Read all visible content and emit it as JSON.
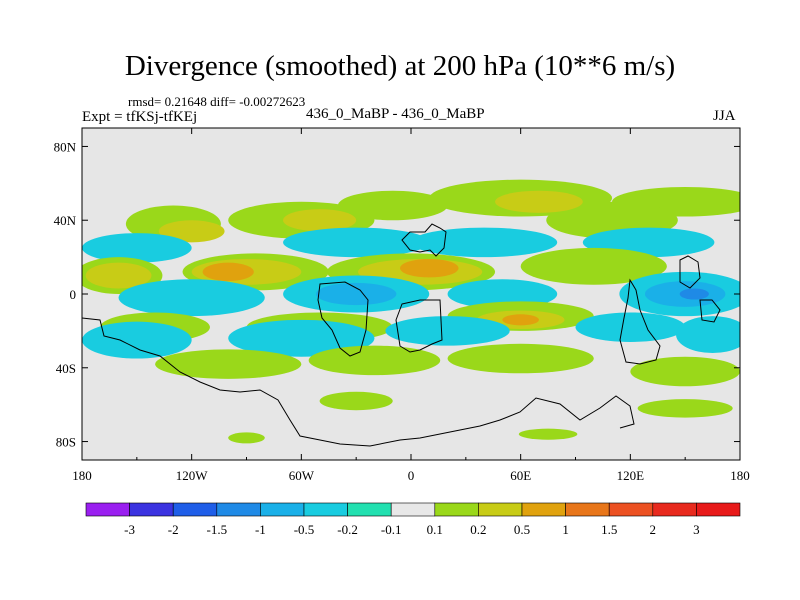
{
  "chart_data": {
    "type": "heatmap",
    "title": "Divergence (smoothed) at 200 hPa (10**6 m/s)",
    "stats_label": "rmsd= 0.21648 diff= -0.00272623",
    "expt_label": "Expt = tfKSj-tfKEj",
    "subtitle": "436_0_MaBP - 436_0_MaBP",
    "season": "JJA",
    "x_ticks": [
      "180",
      "120W",
      "60W",
      "0",
      "60E",
      "120E",
      "180"
    ],
    "x_tick_values": [
      -180,
      -120,
      -60,
      0,
      60,
      120,
      180
    ],
    "y_ticks": [
      "80N",
      "40N",
      "0",
      "40S",
      "80S"
    ],
    "y_tick_values": [
      80,
      40,
      0,
      -40,
      -80
    ],
    "xlim": [
      -180,
      180
    ],
    "ylim": [
      -90,
      90
    ],
    "colorbar": {
      "labels": [
        "-3",
        "-2",
        "-1.5",
        "-1",
        "-0.5",
        "-0.2",
        "-0.1",
        "0.1",
        "0.2",
        "0.5",
        "1",
        "1.5",
        "2",
        "3"
      ],
      "colors": [
        "#9a1ff0",
        "#3b33e0",
        "#1f5ee8",
        "#1f8ae6",
        "#1ab0e8",
        "#19cce0",
        "#22e0b0",
        "#e8e8e8",
        "#9ad81a",
        "#c8cc16",
        "#e0a20e",
        "#e8761a",
        "#ec5122",
        "#e82a1e",
        "#e81a1a"
      ]
    },
    "regions": [
      {
        "level": "0.2",
        "color": "#9ad81a",
        "lon": -130,
        "lat": 38,
        "w": 26,
        "h": 10
      },
      {
        "level": "0.2",
        "color": "#9ad81a",
        "lon": -60,
        "lat": 40,
        "w": 40,
        "h": 10
      },
      {
        "level": "0.2",
        "color": "#9ad81a",
        "lon": -10,
        "lat": 48,
        "w": 30,
        "h": 8
      },
      {
        "level": "0.2",
        "color": "#9ad81a",
        "lon": 60,
        "lat": 52,
        "w": 50,
        "h": 10
      },
      {
        "level": "0.2",
        "color": "#9ad81a",
        "lon": 150,
        "lat": 50,
        "w": 40,
        "h": 8
      },
      {
        "level": "0.2",
        "color": "#9ad81a",
        "lon": 110,
        "lat": 40,
        "w": 36,
        "h": 10
      },
      {
        "level": "0.5",
        "color": "#c8cc16",
        "lon": -120,
        "lat": 34,
        "w": 18,
        "h": 6
      },
      {
        "level": "0.5",
        "color": "#c8cc16",
        "lon": -50,
        "lat": 40,
        "w": 20,
        "h": 6
      },
      {
        "level": "0.5",
        "color": "#c8cc16",
        "lon": 70,
        "lat": 50,
        "w": 24,
        "h": 6
      },
      {
        "level": "-0.2",
        "color": "#19cce0",
        "lon": -150,
        "lat": 25,
        "w": 30,
        "h": 8
      },
      {
        "level": "-0.2",
        "color": "#19cce0",
        "lon": -30,
        "lat": 28,
        "w": 40,
        "h": 8
      },
      {
        "level": "-0.2",
        "color": "#19cce0",
        "lon": 40,
        "lat": 28,
        "w": 40,
        "h": 8
      },
      {
        "level": "-0.2",
        "color": "#19cce0",
        "lon": 130,
        "lat": 28,
        "w": 36,
        "h": 8
      },
      {
        "level": "0.2",
        "color": "#9ad81a",
        "lon": -160,
        "lat": 10,
        "w": 24,
        "h": 10
      },
      {
        "level": "0.2",
        "color": "#9ad81a",
        "lon": -85,
        "lat": 12,
        "w": 40,
        "h": 10
      },
      {
        "level": "0.2",
        "color": "#9ad81a",
        "lon": 0,
        "lat": 12,
        "w": 46,
        "h": 10
      },
      {
        "level": "0.2",
        "color": "#9ad81a",
        "lon": 100,
        "lat": 15,
        "w": 40,
        "h": 10
      },
      {
        "level": "0.5",
        "color": "#c8cc16",
        "lon": -160,
        "lat": 10,
        "w": 18,
        "h": 7
      },
      {
        "level": "0.5",
        "color": "#c8cc16",
        "lon": -90,
        "lat": 12,
        "w": 30,
        "h": 7
      },
      {
        "level": "0.5",
        "color": "#c8cc16",
        "lon": 5,
        "lat": 12,
        "w": 34,
        "h": 7
      },
      {
        "level": "1",
        "color": "#e0a20e",
        "lon": -100,
        "lat": 12,
        "w": 14,
        "h": 5
      },
      {
        "level": "1",
        "color": "#e0a20e",
        "lon": 10,
        "lat": 14,
        "w": 16,
        "h": 5
      },
      {
        "level": "-0.2",
        "color": "#19cce0",
        "lon": -120,
        "lat": -2,
        "w": 40,
        "h": 10
      },
      {
        "level": "-0.2",
        "color": "#19cce0",
        "lon": -30,
        "lat": 0,
        "w": 40,
        "h": 10
      },
      {
        "level": "-0.2",
        "color": "#19cce0",
        "lon": 50,
        "lat": 0,
        "w": 30,
        "h": 8
      },
      {
        "level": "-0.2",
        "color": "#19cce0",
        "lon": 150,
        "lat": 0,
        "w": 36,
        "h": 12
      },
      {
        "level": "-0.5",
        "color": "#1ab0e8",
        "lon": -30,
        "lat": 0,
        "w": 22,
        "h": 6
      },
      {
        "level": "-0.5",
        "color": "#1ab0e8",
        "lon": 150,
        "lat": 0,
        "w": 22,
        "h": 7
      },
      {
        "level": "-1",
        "color": "#1f8ae6",
        "lon": 155,
        "lat": 0,
        "w": 8,
        "h": 3
      },
      {
        "level": "0.2",
        "color": "#9ad81a",
        "lon": -140,
        "lat": -18,
        "w": 30,
        "h": 8
      },
      {
        "level": "0.2",
        "color": "#9ad81a",
        "lon": -50,
        "lat": -18,
        "w": 40,
        "h": 8
      },
      {
        "level": "0.2",
        "color": "#9ad81a",
        "lon": 60,
        "lat": -12,
        "w": 40,
        "h": 8
      },
      {
        "level": "0.5",
        "color": "#c8cc16",
        "lon": 60,
        "lat": -14,
        "w": 24,
        "h": 5
      },
      {
        "level": "1",
        "color": "#e0a20e",
        "lon": 60,
        "lat": -14,
        "w": 10,
        "h": 3
      },
      {
        "level": "-0.2",
        "color": "#19cce0",
        "lon": -150,
        "lat": -25,
        "w": 30,
        "h": 10
      },
      {
        "level": "-0.2",
        "color": "#19cce0",
        "lon": -60,
        "lat": -24,
        "w": 40,
        "h": 10
      },
      {
        "level": "-0.2",
        "color": "#19cce0",
        "lon": 20,
        "lat": -20,
        "w": 34,
        "h": 8
      },
      {
        "level": "-0.2",
        "color": "#19cce0",
        "lon": 120,
        "lat": -18,
        "w": 30,
        "h": 8
      },
      {
        "level": "-0.2",
        "color": "#19cce0",
        "lon": 165,
        "lat": -22,
        "w": 20,
        "h": 10
      },
      {
        "level": "0.2",
        "color": "#9ad81a",
        "lon": -100,
        "lat": -38,
        "w": 40,
        "h": 8
      },
      {
        "level": "0.2",
        "color": "#9ad81a",
        "lon": -20,
        "lat": -36,
        "w": 36,
        "h": 8
      },
      {
        "level": "0.2",
        "color": "#9ad81a",
        "lon": 60,
        "lat": -35,
        "w": 40,
        "h": 8
      },
      {
        "level": "0.2",
        "color": "#9ad81a",
        "lon": 150,
        "lat": -42,
        "w": 30,
        "h": 8
      },
      {
        "level": "0.2",
        "color": "#9ad81a",
        "lon": -30,
        "lat": -58,
        "w": 20,
        "h": 5
      },
      {
        "level": "0.2",
        "color": "#9ad81a",
        "lon": 150,
        "lat": -62,
        "w": 26,
        "h": 5
      },
      {
        "level": "0.2",
        "color": "#9ad81a",
        "lon": -90,
        "lat": -78,
        "w": 10,
        "h": 3
      },
      {
        "level": "0.2",
        "color": "#9ad81a",
        "lon": 75,
        "lat": -76,
        "w": 16,
        "h": 3
      }
    ]
  }
}
